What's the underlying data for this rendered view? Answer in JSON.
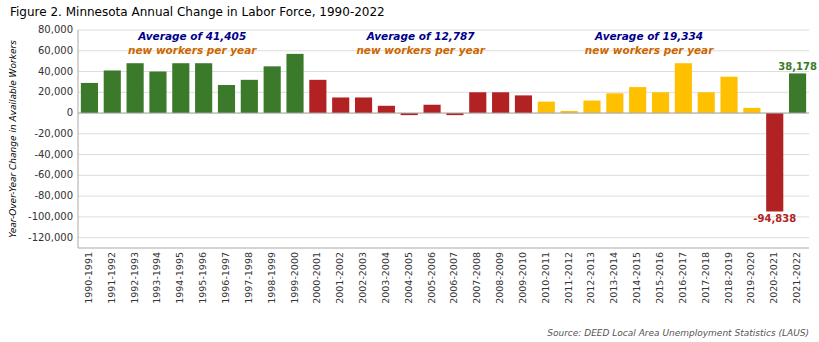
{
  "chart_data": {
    "type": "bar",
    "title": "Figure 2. Minnesota Annual Change in Labor Force, 1990-2022",
    "y_label": "Year-Over-Year Change in Available Workers",
    "categories": [
      "1990-1991",
      "1991-1992",
      "1992-1993",
      "1993-1994",
      "1994-1995",
      "1995-1996",
      "1996-1997",
      "1997-1998",
      "1998-1999",
      "1999-2000",
      "2000-2001",
      "2001-2002",
      "2002-2003",
      "2003-2004",
      "2004-2005",
      "2005-2006",
      "2006-2007",
      "2007-2008",
      "2008-2009",
      "2009-2010",
      "2010-2011",
      "2011-2012",
      "2012-2013",
      "2013-2014",
      "2014-2015",
      "2015-2016",
      "2016-2017",
      "2017-2018",
      "2018-2019",
      "2019-2020",
      "2020-2021",
      "2021-2022"
    ],
    "values": [
      29000,
      41000,
      48000,
      40000,
      48000,
      48000,
      27000,
      32000,
      45000,
      57000,
      32000,
      15000,
      15000,
      7000,
      -2000,
      8000,
      -2000,
      20000,
      20000,
      17000,
      11000,
      2000,
      12000,
      19000,
      25000,
      20000,
      48000,
      20000,
      35000,
      5000,
      -94838,
      38178
    ],
    "colors": [
      "#3a7a2a",
      "#3a7a2a",
      "#3a7a2a",
      "#3a7a2a",
      "#3a7a2a",
      "#3a7a2a",
      "#3a7a2a",
      "#3a7a2a",
      "#3a7a2a",
      "#3a7a2a",
      "#b22222",
      "#b22222",
      "#b22222",
      "#b22222",
      "#b22222",
      "#b22222",
      "#b22222",
      "#b22222",
      "#b22222",
      "#b22222",
      "#ffc000",
      "#ffc000",
      "#ffc000",
      "#ffc000",
      "#ffc000",
      "#ffc000",
      "#ffc000",
      "#ffc000",
      "#ffc000",
      "#ffc000",
      "#b22222",
      "#3a7a2a"
    ],
    "ylim": [
      -130000,
      80000
    ],
    "yticks": [
      {
        "value": -120000,
        "label": "-120,000"
      },
      {
        "value": -100000,
        "label": "-100,000"
      },
      {
        "value": -80000,
        "label": "-80,000"
      },
      {
        "value": -60000,
        "label": "-60,000"
      },
      {
        "value": -40000,
        "label": "-40,000"
      },
      {
        "value": -20000,
        "label": "-20,000"
      },
      0,
      {
        "value": 20000,
        "label": "20,000"
      },
      {
        "value": 40000,
        "label": "40,000"
      },
      {
        "value": 60000,
        "label": "60,000"
      },
      {
        "value": 80000,
        "label": "80,000"
      }
    ],
    "grid": true,
    "annotations": [
      {
        "text": "38,178",
        "value": 38178,
        "category": "2021-2022",
        "color": "#3a7a2a"
      },
      {
        "text": "-94,838",
        "value": -94838,
        "category": "2020-2021",
        "color": "#b22222"
      },
      {
        "text": "Average of  41,405",
        "from": "1990-1991",
        "to": "1999-2000",
        "line": 1,
        "color": "#00008B"
      },
      {
        "text": "new workers  per year",
        "from": "1990-1991",
        "to": "1999-2000",
        "line": 2,
        "color": "#cc6600"
      },
      {
        "text": "Average of  12,787",
        "from": "2000-2001",
        "to": "2009-2010",
        "line": 1,
        "color": "#00008B"
      },
      {
        "text": "new workers  per year",
        "from": "2000-2001",
        "to": "2009-2010",
        "line": 2,
        "color": "#cc6600"
      },
      {
        "text": "Average of  19,334",
        "from": "2010-2011",
        "to": "2019-2020",
        "line": 1,
        "color": "#00008B"
      },
      {
        "text": "new workers  per year",
        "from": "2010-2011",
        "to": "2019-2020",
        "line": 2,
        "color": "#cc6600"
      },
      {
        "text": "Source: DEED Local Area Unemployment Statistics (LAUS)"
      }
    ]
  }
}
